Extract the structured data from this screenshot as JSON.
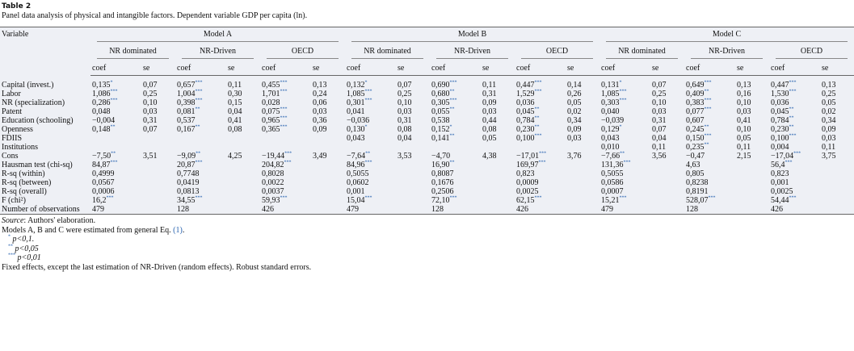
{
  "header": {
    "label": "Table 2",
    "caption": "Panel data analysis of physical and intangible factors. Dependent variable GDP per capita (ln)."
  },
  "table": {
    "variable_header": "Variable",
    "coef_label": "coef",
    "se_label": "se",
    "models": [
      {
        "name": "Model A",
        "groups": [
          "NR dominated",
          "NR-Driven",
          "OECD"
        ]
      },
      {
        "name": "Model B",
        "groups": [
          "NR dominated",
          "NR-Driven",
          "OECD"
        ]
      },
      {
        "name": "Model C",
        "groups": [
          "NR dominated",
          "NR-Driven",
          "OECD"
        ]
      }
    ],
    "rows": [
      {
        "label": "Capital (invest.)",
        "cells": [
          {
            "v": "0,135",
            "sig": "*"
          },
          "0,07",
          {
            "v": "0,657",
            "sig": "***"
          },
          "0,11",
          {
            "v": "0,455",
            "sig": "***"
          },
          "0,13",
          {
            "v": "0,132",
            "sig": "*"
          },
          "0,07",
          {
            "v": "0,690",
            "sig": "***"
          },
          "0,11",
          {
            "v": "0,447",
            "sig": "***"
          },
          "0,14",
          {
            "v": "0,131",
            "sig": "*"
          },
          "0,07",
          {
            "v": "0,649",
            "sig": "***"
          },
          "0,13",
          {
            "v": "0,447",
            "sig": "***"
          },
          "0,13"
        ]
      },
      {
        "label": "Labor",
        "cells": [
          {
            "v": "1,086",
            "sig": "***"
          },
          "0,25",
          {
            "v": "1,004",
            "sig": "***"
          },
          "0,30",
          {
            "v": "1,701",
            "sig": "***"
          },
          "0,24",
          {
            "v": "1,085",
            "sig": "***"
          },
          "0,25",
          {
            "v": "0,680",
            "sig": "**"
          },
          "0,31",
          {
            "v": "1,529",
            "sig": "***"
          },
          "0,26",
          {
            "v": "1,085",
            "sig": "***"
          },
          "0,25",
          {
            "v": "0,409",
            "sig": "**"
          },
          "0,16",
          {
            "v": "1,530",
            "sig": "***"
          },
          "0,25"
        ]
      },
      {
        "label": "NR (specialization)",
        "cells": [
          {
            "v": "0,286",
            "sig": "***"
          },
          "0,10",
          {
            "v": "0,398",
            "sig": "***"
          },
          "0,15",
          "0,028",
          "0,06",
          {
            "v": "0,301",
            "sig": "***"
          },
          "0,10",
          {
            "v": "0,305",
            "sig": "***"
          },
          "0,09",
          "0,036",
          "0,05",
          {
            "v": "0,303",
            "sig": "***"
          },
          "0,10",
          {
            "v": "0,383",
            "sig": "***"
          },
          "0,10",
          "0,036",
          "0,05"
        ]
      },
      {
        "label": "Patent",
        "cells": [
          "0,048",
          "0,03",
          {
            "v": "0,081",
            "sig": "**"
          },
          "0,04",
          {
            "v": "0,075",
            "sig": "***"
          },
          "0,03",
          "0,041",
          "0,03",
          {
            "v": "0,055",
            "sig": "**"
          },
          "0,03",
          {
            "v": "0,045",
            "sig": "**"
          },
          "0,02",
          "0,040",
          "0,03",
          {
            "v": "0,077",
            "sig": "***"
          },
          "0,03",
          {
            "v": "0,045",
            "sig": "**"
          },
          "0,02"
        ]
      },
      {
        "label": "Education (schooling)",
        "cells": [
          "−0,004",
          "0,31",
          "0,537",
          "0,41",
          {
            "v": "0,965",
            "sig": "***"
          },
          "0,36",
          "−0,036",
          "0,31",
          "0,538",
          "0,44",
          {
            "v": "0,784",
            "sig": "**"
          },
          "0,34",
          "−0,039",
          "0,31",
          "0,607",
          "0,41",
          {
            "v": "0,784",
            "sig": "**"
          },
          "0,34"
        ]
      },
      {
        "label": "Openness",
        "cells": [
          {
            "v": "0,148",
            "sig": "**"
          },
          "0,07",
          {
            "v": "0,167",
            "sig": "**"
          },
          "0,08",
          {
            "v": "0,365",
            "sig": "***"
          },
          "0,09",
          {
            "v": "0,130",
            "sig": "*"
          },
          "0,08",
          {
            "v": "0,152",
            "sig": "*"
          },
          "0,08",
          {
            "v": "0,230",
            "sig": "**"
          },
          "0,09",
          {
            "v": "0,129",
            "sig": "*"
          },
          "0,07",
          {
            "v": "0,245",
            "sig": "**"
          },
          "0,10",
          {
            "v": "0,230",
            "sig": "**"
          },
          "0,09"
        ]
      },
      {
        "label": "FDIIS",
        "cells": [
          null,
          null,
          null,
          null,
          null,
          null,
          "0,043",
          "0,04",
          {
            "v": "0,141",
            "sig": "**"
          },
          "0,05",
          {
            "v": "0,100",
            "sig": "***"
          },
          "0,03",
          "0,043",
          "0,04",
          {
            "v": "0,150",
            "sig": "***"
          },
          "0,05",
          {
            "v": "0,100",
            "sig": "***"
          },
          "0,03"
        ]
      },
      {
        "label": "Institutions",
        "cells": [
          null,
          null,
          null,
          null,
          null,
          null,
          null,
          null,
          null,
          null,
          null,
          null,
          "0,010",
          "0,11",
          {
            "v": "0,235",
            "sig": "**"
          },
          "0,11",
          "0,004",
          "0,11"
        ]
      },
      {
        "label": "Cons",
        "cells": [
          {
            "v": "−7,50",
            "sig": "**"
          },
          "3,51",
          {
            "v": "−9,09",
            "sig": "**"
          },
          "4,25",
          {
            "v": "−19,44",
            "sig": "***"
          },
          "3,49",
          {
            "v": "−7,64",
            "sig": "**"
          },
          "3,53",
          "−4,70",
          "4,38",
          {
            "v": "−17,01",
            "sig": "***"
          },
          "3,76",
          {
            "v": "−7,66",
            "sig": "**"
          },
          "3,56",
          "−0,47",
          "2,15",
          {
            "v": "−17,04",
            "sig": "***"
          },
          "3,75"
        ]
      },
      {
        "label": "Hausman test (chi-sq)",
        "cells": [
          {
            "v": "84,87",
            "sig": "***"
          },
          null,
          {
            "v": "20,87",
            "sig": "***"
          },
          null,
          {
            "v": "204,82",
            "sig": "***"
          },
          null,
          {
            "v": "84,96",
            "sig": "***"
          },
          null,
          {
            "v": "16,90",
            "sig": "**"
          },
          null,
          {
            "v": "169,97",
            "sig": "***"
          },
          null,
          {
            "v": "131,36",
            "sig": "***"
          },
          null,
          "4,63",
          null,
          {
            "v": "56,4",
            "sig": "***"
          },
          null
        ]
      },
      {
        "label": "R-sq (within)",
        "cells": [
          "0,4999",
          null,
          "0,7748",
          null,
          "0,8028",
          null,
          "0,5055",
          null,
          "0,8087",
          null,
          "0,823",
          null,
          "0,5055",
          null,
          "0,805",
          null,
          "0,823",
          null
        ]
      },
      {
        "label": "R-sq (between)",
        "cells": [
          "0,0567",
          null,
          "0,0419",
          null,
          "0,0022",
          null,
          "0,0602",
          null,
          "0,1676",
          null,
          "0,0009",
          null,
          "0,0586",
          null,
          "0,8238",
          null,
          "0,001",
          null
        ]
      },
      {
        "label": "R-sq (overall)",
        "cells": [
          "0,0006",
          null,
          "0,0813",
          null,
          "0,0037",
          null,
          "0,001",
          null,
          "0,2506",
          null,
          "0,0025",
          null,
          "0,0007",
          null,
          "0,8191",
          null,
          "0,0025",
          null
        ]
      },
      {
        "label": "F (chi²)",
        "cells": [
          {
            "v": "16,2",
            "sig": "***"
          },
          null,
          {
            "v": "34,55",
            "sig": "***"
          },
          null,
          {
            "v": "59,93",
            "sig": "***"
          },
          null,
          {
            "v": "15,04",
            "sig": "***"
          },
          null,
          {
            "v": "72,10",
            "sig": "***"
          },
          null,
          {
            "v": "62,15",
            "sig": "***"
          },
          null,
          {
            "v": "15,21",
            "sig": "***"
          },
          null,
          {
            "v": "528,07",
            "sig": "***"
          },
          null,
          {
            "v": "54,44",
            "sig": "***"
          },
          null
        ]
      },
      {
        "label": "Number of observations",
        "cells": [
          "479",
          null,
          "128",
          null,
          "426",
          null,
          "479",
          null,
          "128",
          null,
          "426",
          null,
          "479",
          null,
          "128",
          null,
          "426",
          null
        ]
      }
    ]
  },
  "notes": {
    "source_label": "Source",
    "source_text": ": Authors' elaboration.",
    "models_text": "Models A, B and C were estimated from general Eq. ",
    "models_link": "(1)",
    "models_end": ".",
    "significance": [
      {
        "stars": "*",
        "text": "p<0,1."
      },
      {
        "stars": "**",
        "text": "p<0,05"
      },
      {
        "stars": "***",
        "text": "p<0,01"
      }
    ],
    "final": "Fixed effects, except the last estimation of NR-Driven (random effects). Robust standard errors."
  }
}
